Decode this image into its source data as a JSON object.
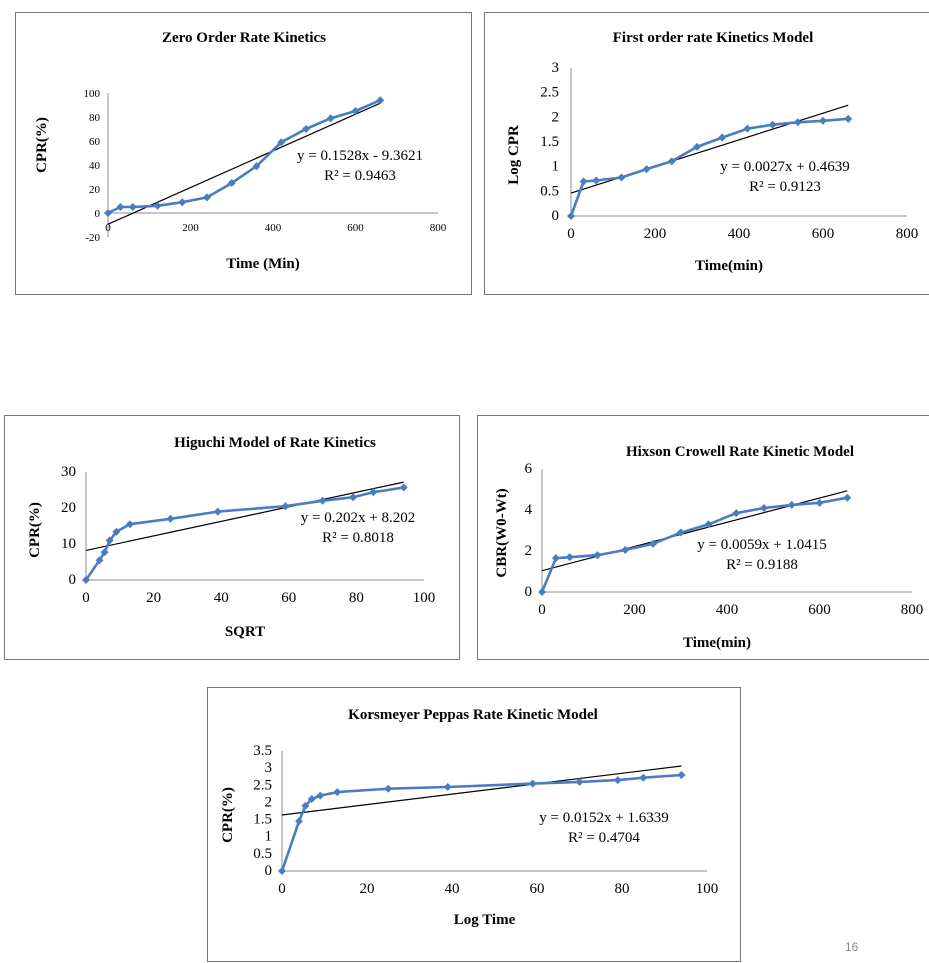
{
  "slide_number": "16",
  "colors": {
    "series": "#4a7dc0",
    "trend": "#000000",
    "axis": "#8c8c8c"
  },
  "chart_data": [
    {
      "id": "zero",
      "type": "scatter",
      "title": "Zero Order Rate Kinetics",
      "xlabel": "Time (Min)",
      "ylabel": "CPR(%)",
      "xlim": [
        0,
        800
      ],
      "ylim": [
        -20,
        100
      ],
      "xticks": [
        0,
        200,
        400,
        600,
        800
      ],
      "yticks": [
        -20,
        0,
        20,
        40,
        60,
        80,
        100
      ],
      "x": [
        0,
        30,
        60,
        120,
        180,
        240,
        300,
        360,
        420,
        480,
        540,
        600,
        660
      ],
      "y": [
        0,
        5,
        5,
        6,
        9,
        13,
        25,
        39,
        59,
        70,
        79,
        85,
        94
      ],
      "trendline": {
        "slope": 0.1528,
        "intercept": -9.3621
      },
      "equation": "y = 0.1528x - 9.3621",
      "r2": "R² = 0.9463"
    },
    {
      "id": "first",
      "type": "scatter",
      "title": "First order rate Kinetics Model",
      "xlabel": "Time(min)",
      "ylabel": "Log CPR",
      "xlim": [
        0,
        800
      ],
      "ylim": [
        0,
        3
      ],
      "xticks": [
        0,
        200,
        400,
        600,
        800
      ],
      "yticks": [
        0,
        0.5,
        1,
        1.5,
        2,
        2.5,
        3
      ],
      "x": [
        0,
        30,
        60,
        120,
        180,
        240,
        300,
        360,
        420,
        480,
        540,
        600,
        660
      ],
      "y": [
        0,
        0.7,
        0.72,
        0.78,
        0.95,
        1.11,
        1.4,
        1.59,
        1.77,
        1.85,
        1.9,
        1.93,
        1.97
      ],
      "trendline": {
        "slope": 0.0027,
        "intercept": 0.4639
      },
      "equation": "y = 0.0027x + 0.4639",
      "r2": "R² = 0.9123"
    },
    {
      "id": "higuchi",
      "type": "scatter",
      "title": "Higuchi Model of Rate Kinetics",
      "xlabel": "SQRT",
      "ylabel": "CPR(%)",
      "xlim": [
        0,
        100
      ],
      "ylim": [
        0,
        30
      ],
      "xticks": [
        0,
        20,
        40,
        60,
        80,
        100
      ],
      "yticks": [
        0,
        10,
        20,
        30
      ],
      "x": [
        0,
        4,
        5.5,
        7,
        9,
        13,
        25,
        39,
        59,
        70,
        79,
        85,
        94
      ],
      "y": [
        0,
        5.5,
        7.7,
        11,
        13.4,
        15.5,
        17,
        19,
        20.5,
        22,
        23,
        24.4,
        25.7
      ],
      "trendline": {
        "slope": 0.202,
        "intercept": 8.202
      },
      "equation": "y = 0.202x + 8.202",
      "r2": "R² = 0.8018"
    },
    {
      "id": "hixson",
      "type": "scatter",
      "title": "Hixson Crowell Rate Kinetic Model",
      "xlabel": "Time(min)",
      "ylabel": "CBR(W0-Wt)",
      "xlim": [
        0,
        800
      ],
      "ylim": [
        0,
        6
      ],
      "xticks": [
        0,
        200,
        400,
        600,
        800
      ],
      "yticks": [
        0,
        2,
        4,
        6
      ],
      "x": [
        0,
        30,
        60,
        120,
        180,
        240,
        300,
        360,
        420,
        480,
        540,
        600,
        660
      ],
      "y": [
        0,
        1.65,
        1.7,
        1.8,
        2.05,
        2.35,
        2.9,
        3.3,
        3.85,
        4.1,
        4.25,
        4.35,
        4.6
      ],
      "trendline": {
        "slope": 0.0059,
        "intercept": 1.0415
      },
      "equation": "y = 0.0059x + 1.0415",
      "r2": "R² = 0.9188"
    },
    {
      "id": "korsmeyer",
      "type": "scatter",
      "title": "Korsmeyer Peppas Rate Kinetic Model",
      "xlabel": "Log Time",
      "ylabel": "CPR(%)",
      "xlim": [
        0,
        100
      ],
      "ylim": [
        0,
        3.5
      ],
      "xticks": [
        0,
        20,
        40,
        60,
        80,
        100
      ],
      "yticks": [
        0,
        0.5,
        1,
        1.5,
        2,
        2.5,
        3,
        3.5
      ],
      "x": [
        0,
        4,
        5.5,
        7,
        9,
        13,
        25,
        39,
        59,
        70,
        79,
        85,
        94
      ],
      "y": [
        0,
        1.45,
        1.9,
        2.1,
        2.2,
        2.3,
        2.4,
        2.45,
        2.55,
        2.6,
        2.65,
        2.72,
        2.8
      ],
      "trendline": {
        "slope": 0.0152,
        "intercept": 1.6339
      },
      "equation": "y = 0.0152x + 1.6339",
      "r2": "R² = 0.4704"
    }
  ]
}
